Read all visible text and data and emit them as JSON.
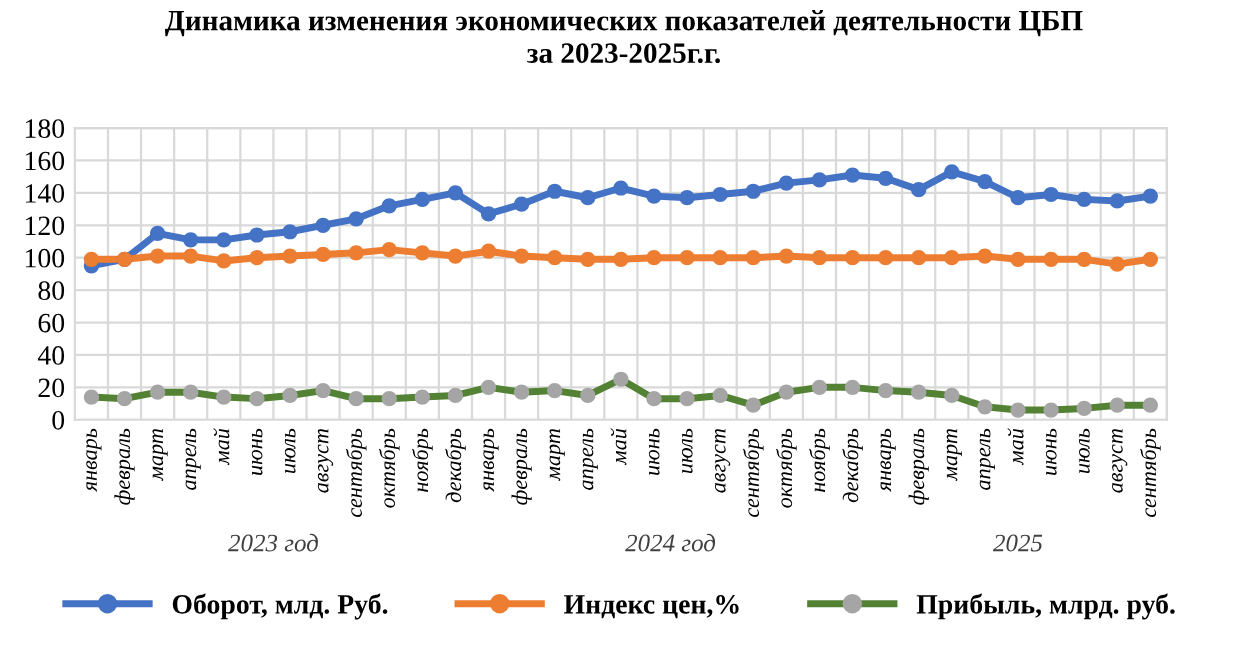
{
  "chart_data": {
    "type": "line",
    "title": "Динамика изменения экономических показателей деятельности ЦБП\nза 2023-2025г.г.",
    "categories": [
      "январь",
      "февраль",
      "март",
      "апрель",
      "май",
      "июнь",
      "июль",
      "август",
      "сентябрь",
      "октябрь",
      "ноябрь",
      "декабрь",
      "январь",
      "февраль",
      "март",
      "апрель",
      "май",
      "июнь",
      "июль",
      "август",
      "сентябрь",
      "октябрь",
      "ноябрь",
      "декабрь",
      "январь",
      "февраль",
      "март",
      "апрель",
      "май",
      "июнь",
      "июль",
      "август",
      "сентябрь"
    ],
    "annotations": [
      "2023 год",
      "2024 год",
      "2025"
    ],
    "series": [
      {
        "name": "Оборот, млд. Руб.",
        "color": "#4472c4",
        "values": [
          95,
          99,
          115,
          111,
          111,
          114,
          116,
          120,
          124,
          132,
          136,
          140,
          127,
          133,
          141,
          137,
          143,
          138,
          137,
          139,
          141,
          146,
          148,
          151,
          149,
          142,
          153,
          147,
          137,
          139,
          136,
          135,
          138
        ]
      },
      {
        "name": "Индекс цен,%",
        "color": "#ed7d31",
        "values": [
          99,
          99,
          101,
          101,
          98,
          100,
          101,
          102,
          103,
          105,
          103,
          101,
          104,
          101,
          100,
          99,
          99,
          100,
          100,
          100,
          100,
          101,
          100,
          100,
          100,
          100,
          100,
          101,
          99,
          99,
          99,
          96,
          99
        ]
      },
      {
        "name": "Прибыль, млрд. руб.",
        "color": "#548235",
        "colors": [
          "#a5a5a5",
          "#a5a5a5",
          "#a5a5a5",
          "#a5a5a5",
          "#a5a5a5",
          "#a5a5a5",
          "#a5a5a5",
          "#a5a5a5",
          "#a5a5a5",
          "#a5a5a5",
          "#a5a5a5",
          "#a5a5a5",
          "#a5a5a5",
          "#a5a5a5",
          "#a5a5a5",
          "#a5a5a5",
          "#a5a5a5",
          "#a5a5a5",
          "#a5a5a5",
          "#a5a5a5",
          "#a5a5a5",
          "#a5a5a5",
          "#a5a5a5",
          "#a5a5a5",
          "#a5a5a5",
          "#a5a5a5",
          "#a5a5a5",
          "#a5a5a5",
          "#a5a5a5",
          "#a5a5a5",
          "#a5a5a5",
          "#a5a5a5",
          "#a5a5a5"
        ],
        "values": [
          14,
          13,
          17,
          17,
          14,
          13,
          15,
          18,
          13,
          13,
          14,
          15,
          20,
          17,
          18,
          15,
          25,
          13,
          13,
          15,
          9,
          17,
          20,
          20,
          18,
          17,
          15,
          8,
          6,
          6,
          7,
          9,
          9
        ]
      }
    ],
    "ylim": [
      0,
      180
    ],
    "yticks": [
      0,
      20,
      40,
      60,
      80,
      100,
      120,
      140,
      160,
      180
    ],
    "grid": true,
    "legend": "bottom",
    "marker": "circle",
    "line_style": "solid"
  }
}
